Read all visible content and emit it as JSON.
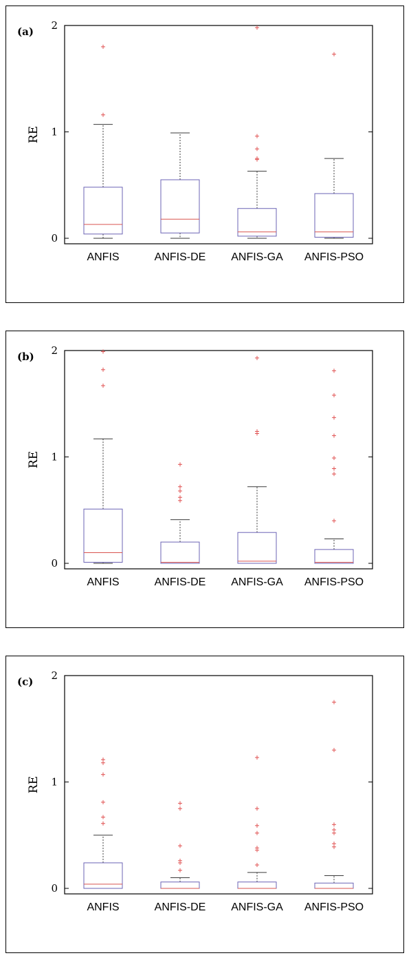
{
  "colors": {
    "box": "#6b63b5",
    "median": "#d9534f",
    "whisker": "#3a3a3a",
    "outlier": "#e05050",
    "axis": "#000000"
  },
  "chart_data": [
    {
      "type": "box",
      "panel_label": "(a)",
      "ylabel": "RE",
      "ylim": [
        0,
        2
      ],
      "yticks": [
        0,
        1,
        2
      ],
      "categories": [
        "ANFIS",
        "ANFIS-DE",
        "ANFIS-GA",
        "ANFIS-PSO"
      ],
      "boxes": [
        {
          "name": "ANFIS",
          "whisker_low": 0.0,
          "q1": 0.04,
          "median": 0.13,
          "q3": 0.48,
          "whisker_high": 1.07,
          "outliers": [
            1.16,
            1.8
          ]
        },
        {
          "name": "ANFIS-DE",
          "whisker_low": 0.0,
          "q1": 0.05,
          "median": 0.18,
          "q3": 0.55,
          "whisker_high": 0.99,
          "outliers": []
        },
        {
          "name": "ANFIS-GA",
          "whisker_low": 0.0,
          "q1": 0.02,
          "median": 0.06,
          "q3": 0.28,
          "whisker_high": 0.63,
          "outliers": [
            0.74,
            0.75,
            0.84,
            0.96,
            1.98
          ]
        },
        {
          "name": "ANFIS-PSO",
          "whisker_low": 0.0,
          "q1": 0.01,
          "median": 0.06,
          "q3": 0.42,
          "whisker_high": 0.75,
          "outliers": [
            1.73
          ]
        }
      ]
    },
    {
      "type": "box",
      "panel_label": "(b)",
      "ylabel": "RE",
      "ylim": [
        0,
        2
      ],
      "yticks": [
        0,
        1,
        2
      ],
      "categories": [
        "ANFIS",
        "ANFIS-DE",
        "ANFIS-GA",
        "ANFIS-PSO"
      ],
      "boxes": [
        {
          "name": "ANFIS",
          "whisker_low": 0.0,
          "q1": 0.01,
          "median": 0.1,
          "q3": 0.51,
          "whisker_high": 1.17,
          "outliers": [
            1.67,
            1.82,
            1.99
          ]
        },
        {
          "name": "ANFIS-DE",
          "whisker_low": 0.0,
          "q1": 0.0,
          "median": 0.01,
          "q3": 0.2,
          "whisker_high": 0.41,
          "outliers": [
            0.59,
            0.62,
            0.68,
            0.72,
            0.93
          ]
        },
        {
          "name": "ANFIS-GA",
          "whisker_low": 0.0,
          "q1": 0.0,
          "median": 0.02,
          "q3": 0.29,
          "whisker_high": 0.72,
          "outliers": [
            1.22,
            1.24,
            1.93
          ]
        },
        {
          "name": "ANFIS-PSO",
          "whisker_low": 0.0,
          "q1": 0.0,
          "median": 0.01,
          "q3": 0.13,
          "whisker_high": 0.23,
          "outliers": [
            0.4,
            0.84,
            0.89,
            0.99,
            1.2,
            1.37,
            1.58,
            1.81
          ]
        }
      ]
    },
    {
      "type": "box",
      "panel_label": "(c)",
      "ylabel": "RE",
      "ylim": [
        0,
        2
      ],
      "yticks": [
        0,
        1,
        2
      ],
      "categories": [
        "ANFIS",
        "ANFIS-DE",
        "ANFIS-GA",
        "ANFIS-PSO"
      ],
      "boxes": [
        {
          "name": "ANFIS",
          "whisker_low": 0.0,
          "q1": 0.0,
          "median": 0.04,
          "q3": 0.24,
          "whisker_high": 0.5,
          "outliers": [
            0.61,
            0.67,
            0.81,
            1.07,
            1.18,
            1.21
          ]
        },
        {
          "name": "ANFIS-DE",
          "whisker_low": 0.0,
          "q1": 0.0,
          "median": 0.0,
          "q3": 0.06,
          "whisker_high": 0.1,
          "outliers": [
            0.17,
            0.24,
            0.26,
            0.4,
            0.75,
            0.8
          ]
        },
        {
          "name": "ANFIS-GA",
          "whisker_low": 0.0,
          "q1": 0.0,
          "median": 0.0,
          "q3": 0.06,
          "whisker_high": 0.15,
          "outliers": [
            0.22,
            0.36,
            0.38,
            0.52,
            0.59,
            0.75,
            1.23
          ]
        },
        {
          "name": "ANFIS-PSO",
          "whisker_low": 0.0,
          "q1": 0.0,
          "median": 0.0,
          "q3": 0.05,
          "whisker_high": 0.12,
          "outliers": [
            0.39,
            0.42,
            0.52,
            0.55,
            0.6,
            1.3,
            1.75
          ]
        }
      ]
    }
  ]
}
